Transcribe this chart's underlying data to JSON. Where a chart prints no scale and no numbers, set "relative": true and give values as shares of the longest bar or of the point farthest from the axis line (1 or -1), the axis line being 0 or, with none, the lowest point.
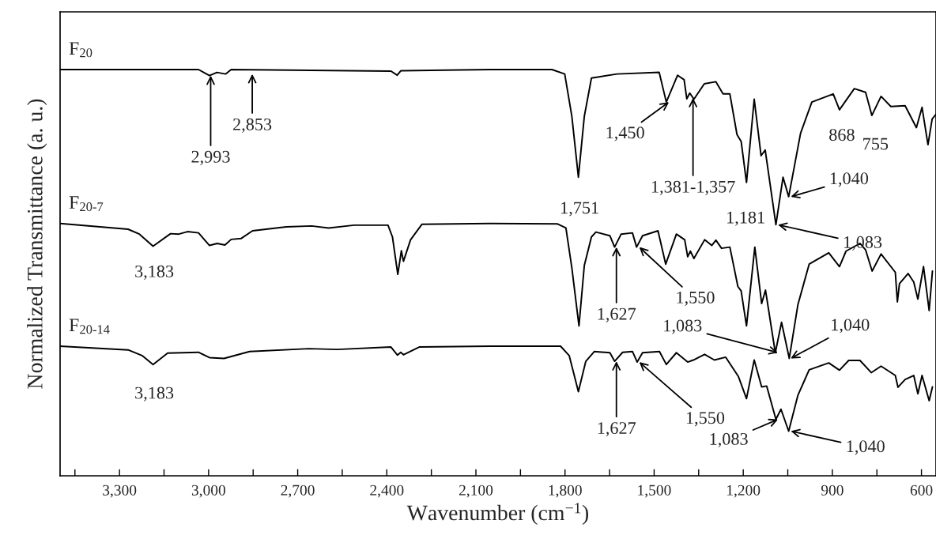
{
  "chart_data": {
    "type": "line",
    "relative": true,
    "xlabel": "Wavenumber (cm$^{−1}$)",
    "ylabel": "Normalized Transmittance (a. u.)",
    "xlim": [
      3500,
      551
    ],
    "xticks": [
      {
        "value": 3450,
        "label": null
      },
      {
        "value": 3300,
        "label": "3,300"
      },
      {
        "value": 3150,
        "label": null
      },
      {
        "value": 3000,
        "label": "3,000"
      },
      {
        "value": 2850,
        "label": null
      },
      {
        "value": 2700,
        "label": "2,700"
      },
      {
        "value": 2550,
        "label": null
      },
      {
        "value": 2400,
        "label": "2,400"
      },
      {
        "value": 2250,
        "label": null
      },
      {
        "value": 2100,
        "label": "2,100"
      },
      {
        "value": 1950,
        "label": null
      },
      {
        "value": 1800,
        "label": "1,800"
      },
      {
        "value": 1650,
        "label": null
      },
      {
        "value": 1500,
        "label": "1,500"
      },
      {
        "value": 1350,
        "label": null
      },
      {
        "value": 1200,
        "label": "1,200"
      },
      {
        "value": 1050,
        "label": null
      },
      {
        "value": 900,
        "label": "900"
      },
      {
        "value": 750,
        "label": null
      },
      {
        "value": 600,
        "label": "600"
      }
    ],
    "grid": false,
    "legend": false,
    "tick_labels": "x",
    "series": [
      {
        "name": "F$_{20}$",
        "color": "#000000",
        "x": [
          3500,
          3034,
          2997,
          2972,
          2943,
          2924,
          2386,
          2365,
          2353,
          2053,
          1844,
          1801,
          1777,
          1755,
          1735,
          1711,
          1625,
          1483,
          1459,
          1421,
          1399,
          1390,
          1380,
          1366,
          1331,
          1292,
          1268,
          1245,
          1221,
          1207,
          1189,
          1163,
          1140,
          1126,
          1090,
          1066,
          1047,
          1007,
          969,
          897,
          876,
          826,
          788,
          767,
          736,
          703,
          655,
          617,
          598,
          578,
          564,
          551
        ],
        "values": [
          1.0,
          1.0,
          0.985,
          0.993,
          0.989,
          1.0,
          0.996,
          0.986,
          0.997,
          1.0,
          1.0,
          0.989,
          0.885,
          0.735,
          0.885,
          0.979,
          0.989,
          0.993,
          0.92,
          0.986,
          0.975,
          0.928,
          0.942,
          0.927,
          0.965,
          0.97,
          0.94,
          0.94,
          0.84,
          0.823,
          0.722,
          0.927,
          0.788,
          0.802,
          0.618,
          0.735,
          0.687,
          0.843,
          0.92,
          0.94,
          0.901,
          0.953,
          0.944,
          0.887,
          0.934,
          0.909,
          0.911,
          0.857,
          0.907,
          0.815,
          0.878,
          0.89
        ]
      },
      {
        "name": "F$_{20‐7}$",
        "color": "#000000",
        "x": [
          3500,
          3271,
          3233,
          3187,
          3128,
          3100,
          3071,
          3034,
          2997,
          2971,
          2945,
          2924,
          2891,
          2852,
          2738,
          2653,
          2596,
          2510,
          2396,
          2381,
          2363,
          2351,
          2344,
          2320,
          2282,
          2053,
          1825,
          1797,
          1777,
          1753,
          1735,
          1711,
          1696,
          1649,
          1633,
          1611,
          1573,
          1559,
          1539,
          1487,
          1461,
          1425,
          1397,
          1387,
          1378,
          1366,
          1330,
          1306,
          1292,
          1273,
          1245,
          1218,
          1207,
          1189,
          1161,
          1138,
          1125,
          1092,
          1071,
          1045,
          1016,
          978,
          912,
          876,
          854,
          807,
          788,
          766,
          736,
          688,
          681,
          674,
          645,
          626,
          612,
          593,
          574,
          563
        ],
        "values": [
          0.621,
          0.607,
          0.595,
          0.565,
          0.596,
          0.595,
          0.601,
          0.598,
          0.567,
          0.572,
          0.568,
          0.582,
          0.584,
          0.603,
          0.613,
          0.615,
          0.61,
          0.617,
          0.617,
          0.588,
          0.496,
          0.554,
          0.528,
          0.581,
          0.619,
          0.621,
          0.62,
          0.61,
          0.512,
          0.369,
          0.518,
          0.588,
          0.6,
          0.591,
          0.563,
          0.595,
          0.598,
          0.563,
          0.591,
          0.603,
          0.521,
          0.595,
          0.581,
          0.539,
          0.553,
          0.535,
          0.581,
          0.567,
          0.58,
          0.56,
          0.563,
          0.466,
          0.455,
          0.369,
          0.563,
          0.424,
          0.457,
          0.303,
          0.378,
          0.289,
          0.421,
          0.521,
          0.549,
          0.515,
          0.553,
          0.572,
          0.556,
          0.504,
          0.546,
          0.501,
          0.428,
          0.473,
          0.498,
          0.477,
          0.435,
          0.515,
          0.407,
          0.504
        ]
      },
      {
        "name": "F$_{20‐14}$",
        "color": "#000000",
        "x": [
          3500,
          3271,
          3224,
          3187,
          3138,
          3034,
          2997,
          2948,
          2862,
          2662,
          2567,
          2386,
          2364,
          2353,
          2344,
          2291,
          2053,
          1815,
          1786,
          1755,
          1730,
          1701,
          1649,
          1633,
          1606,
          1573,
          1557,
          1539,
          1482,
          1459,
          1425,
          1387,
          1368,
          1330,
          1297,
          1259,
          1216,
          1189,
          1163,
          1138,
          1121,
          1090,
          1073,
          1047,
          1016,
          978,
          912,
          876,
          845,
          807,
          769,
          736,
          688,
          679,
          655,
          626,
          612,
          598,
          574,
          563
        ],
        "values": [
          0.319,
          0.31,
          0.296,
          0.274,
          0.302,
          0.304,
          0.291,
          0.289,
          0.306,
          0.313,
          0.311,
          0.317,
          0.297,
          0.304,
          0.298,
          0.317,
          0.319,
          0.319,
          0.296,
          0.207,
          0.282,
          0.306,
          0.303,
          0.282,
          0.304,
          0.306,
          0.28,
          0.303,
          0.306,
          0.274,
          0.303,
          0.28,
          0.285,
          0.299,
          0.285,
          0.292,
          0.244,
          0.19,
          0.285,
          0.219,
          0.221,
          0.139,
          0.164,
          0.11,
          0.198,
          0.261,
          0.278,
          0.26,
          0.284,
          0.284,
          0.254,
          0.27,
          0.247,
          0.218,
          0.237,
          0.247,
          0.202,
          0.247,
          0.185,
          0.219
        ]
      }
    ],
    "annotations": [
      {
        "text": "2,993",
        "x": 2993,
        "y": 0.985
      },
      {
        "text": "2,853",
        "x": 2853,
        "y": 0.989
      },
      {
        "text": "1,751",
        "x": 1751,
        "y": 0.735
      },
      {
        "text": "1,450",
        "x": 1450,
        "y": 0.92
      },
      {
        "text": "1,381-1,357",
        "x": 1369,
        "y": 0.93
      },
      {
        "text": "1,181",
        "x": 1181,
        "y": 0.722
      },
      {
        "text": "1,040",
        "x": 1040,
        "y": 0.687
      },
      {
        "text": "1,083",
        "x": 1083,
        "y": 0.618
      },
      {
        "text": "868",
        "x": 868,
        "y": 0.901
      },
      {
        "text": "755",
        "x": 755,
        "y": 0.887
      },
      {
        "text": "3,183",
        "x": 3183,
        "y": 0.565
      },
      {
        "text": "1,627",
        "x": 1627,
        "y": 0.563
      },
      {
        "text": "1,550",
        "x": 1550,
        "y": 0.563
      },
      {
        "text": "1,083",
        "x": 1083,
        "y": 0.303
      },
      {
        "text": "1,040",
        "x": 1040,
        "y": 0.289
      },
      {
        "text": "3,183",
        "x": 3183,
        "y": 0.274
      },
      {
        "text": "1,627",
        "x": 1627,
        "y": 0.282
      },
      {
        "text": "1,550",
        "x": 1550,
        "y": 0.28
      },
      {
        "text": "1,083",
        "x": 1083,
        "y": 0.139
      },
      {
        "text": "1,040",
        "x": 1040,
        "y": 0.11
      }
    ]
  }
}
